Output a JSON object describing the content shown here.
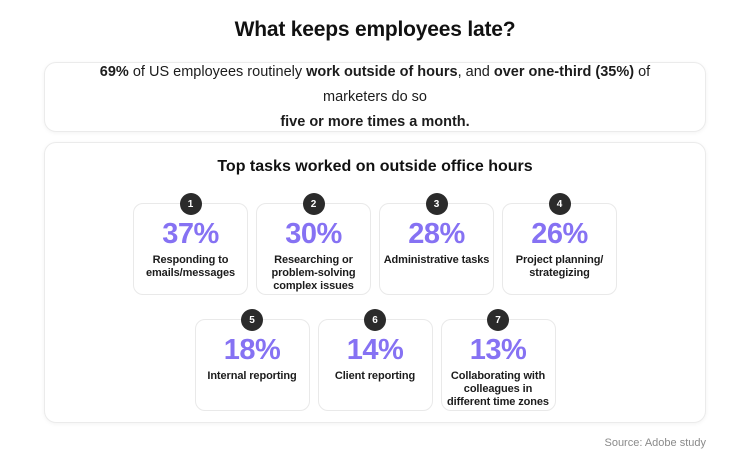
{
  "page": {
    "title": "What keeps employees late?",
    "source": "Source: Adobe study"
  },
  "highlight": {
    "segments": [
      {
        "text": "69%",
        "bold": true
      },
      {
        "text": " of US employees routinely ",
        "bold": false
      },
      {
        "text": "work outside of hours",
        "bold": true
      },
      {
        "text": ", and ",
        "bold": false
      },
      {
        "text": "over one-third (35%)",
        "bold": true
      },
      {
        "text": " of marketers do so",
        "bold": false
      }
    ],
    "line2": "five or more times a month."
  },
  "chart": {
    "title": "Top tasks worked on outside office hours"
  },
  "chart_data": {
    "type": "bar",
    "title": "Top tasks worked on outside office hours",
    "categories": [
      "Responding to emails/messages",
      "Researching or problem-solving complex issues",
      "Administrative tasks",
      "Project planning/strategizing",
      "Internal reporting",
      "Client reporting",
      "Collaborating with colleagues in different time zones"
    ],
    "values": [
      37,
      30,
      28,
      26,
      18,
      14,
      13
    ],
    "unit": "%",
    "ranks": [
      1,
      2,
      3,
      4,
      5,
      6,
      7
    ],
    "annotations": [
      "69% of US employees routinely work outside of hours, and over one-third (35%) of marketers do so five or more times a month."
    ],
    "layout": "ranked cards, 4 on top row, 3 on bottom row",
    "source": "Source: Adobe study"
  },
  "tasks": [
    {
      "rank": "1",
      "percent": "37%",
      "label": "Responding to emails/messages"
    },
    {
      "rank": "2",
      "percent": "30%",
      "label": "Researching or problem-solving complex issues"
    },
    {
      "rank": "3",
      "percent": "28%",
      "label": "Administrative tasks"
    },
    {
      "rank": "4",
      "percent": "26%",
      "label": "Project planning/​strategizing"
    },
    {
      "rank": "5",
      "percent": "18%",
      "label": "Internal reporting"
    },
    {
      "rank": "6",
      "percent": "14%",
      "label": "Client reporting"
    },
    {
      "rank": "7",
      "percent": "13%",
      "label": "Collaborating with colleagues in different time zones"
    }
  ],
  "colors": {
    "accent_purple": "#8672F3",
    "badge_dark": "#2B2B2B",
    "text_dark": "#1C1C1C",
    "border_light": "#EBEBEB",
    "source_gray": "#8A8A8A",
    "background": "#FFFFFF"
  }
}
